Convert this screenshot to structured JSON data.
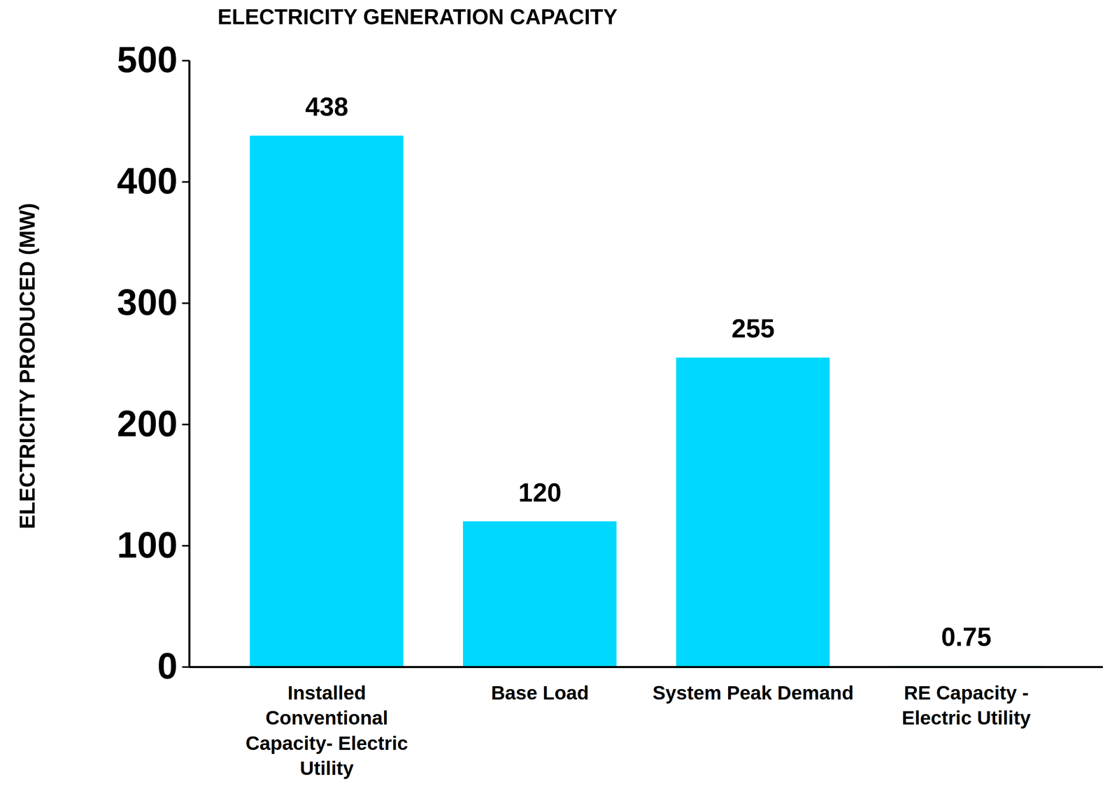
{
  "chart_data": {
    "type": "bar",
    "title": "ELECTRICITY GENERATION CAPACITY",
    "y_label": "ELECTRICITY PRODUCED (MW)",
    "categories": [
      "Installed Conventional Capacity- Electric Utility",
      "Base Load",
      "System Peak Demand",
      "RE Capacity - Electric Utility"
    ],
    "values": [
      438,
      120,
      255,
      0.75
    ],
    "color": "#00d8ff",
    "ylim": [
      0,
      500
    ],
    "yticks": [
      0,
      100,
      200,
      300,
      400,
      500
    ],
    "grid": false,
    "data_labels": true
  }
}
